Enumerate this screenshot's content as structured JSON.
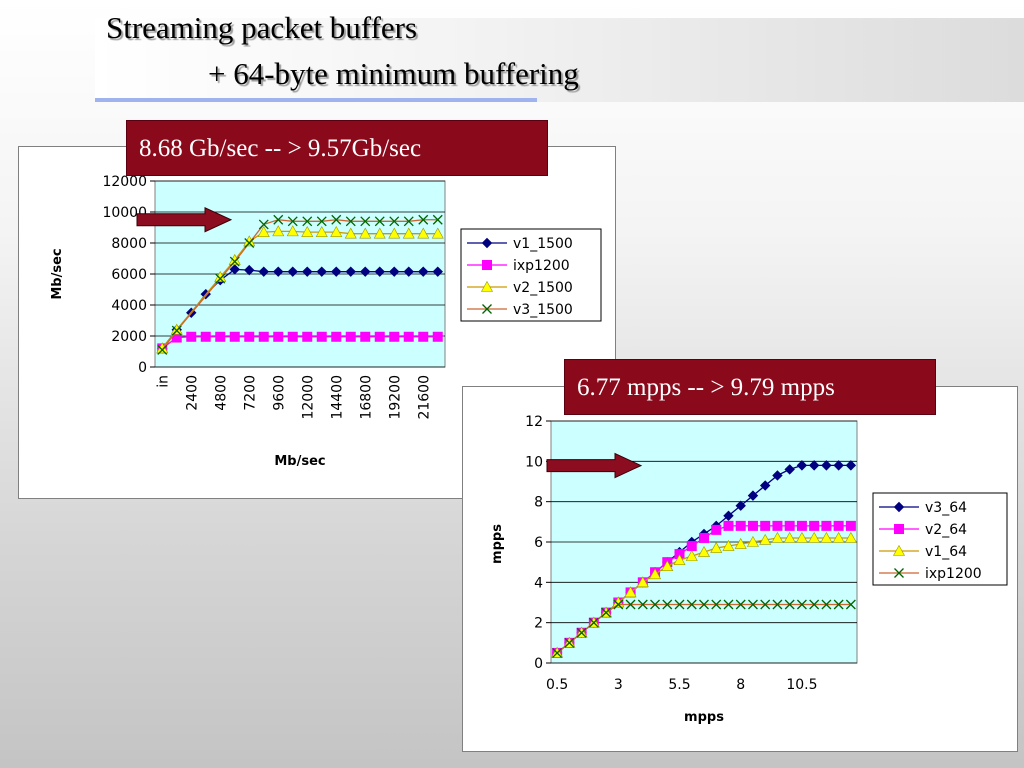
{
  "title": {
    "line1": "Streaming packet buffers",
    "line2": "+ 64-byte minimum buffering"
  },
  "callouts": {
    "chart1": "8.68 Gb/sec -- > 9.57Gb/sec",
    "chart2": "6.77 mpps -- > 9.79 mpps"
  },
  "colors": {
    "plot_bg": "#ccffff",
    "callout_bg": "#8a0a1c",
    "arrow": "#8b0d1f",
    "v1": "#000080",
    "ixp": "#ff00ff",
    "v2": "#ffff00",
    "v3": "#006400"
  },
  "chart_data": [
    {
      "type": "line",
      "title": "",
      "xlabel": "Mb/sec",
      "ylabel": "Mb/sec",
      "ylim": [
        0,
        12000
      ],
      "yticks": [
        "12000",
        "10000",
        "8000",
        "6000",
        "4000",
        "2000",
        "0"
      ],
      "grid": true,
      "legend_position": "right",
      "x_tick_labels": [
        "in",
        "2400",
        "4800",
        "7200",
        "9600",
        "12000",
        "14400",
        "16800",
        "19200",
        "21600"
      ],
      "x": [
        "in",
        1200,
        2400,
        3600,
        4800,
        6000,
        7200,
        8400,
        9600,
        10800,
        12000,
        13200,
        14400,
        15600,
        16800,
        18000,
        19200,
        20400,
        21600,
        22800
      ],
      "series": [
        {
          "name": "v1_1500",
          "color": "#000080",
          "marker": "diamond",
          "values": [
            1200,
            2400,
            3500,
            4700,
            5600,
            6300,
            6250,
            6150,
            6150,
            6150,
            6150,
            6150,
            6150,
            6150,
            6150,
            6150,
            6150,
            6150,
            6150,
            6150
          ]
        },
        {
          "name": "ixp1200",
          "color": "#ff00ff",
          "marker": "square",
          "values": [
            1200,
            1900,
            1950,
            1950,
            1950,
            1950,
            1950,
            1950,
            1950,
            1950,
            1950,
            1950,
            1950,
            1950,
            1950,
            1950,
            1950,
            1950,
            1950,
            1950
          ]
        },
        {
          "name": "v2_1500",
          "color": "#ffff00",
          "marker": "triangle",
          "values": [
            1200,
            2400,
            null,
            null,
            5800,
            6900,
            8100,
            8700,
            8750,
            8750,
            8700,
            8700,
            8700,
            8600,
            8600,
            8600,
            8600,
            8600,
            8600,
            8600
          ]
        },
        {
          "name": "v3_1500",
          "color": "#006400",
          "marker": "x",
          "values": [
            1100,
            2350,
            null,
            null,
            5700,
            6800,
            8000,
            9200,
            9500,
            9400,
            9400,
            9400,
            9500,
            9400,
            9400,
            9400,
            9400,
            9400,
            9500,
            9500
          ]
        }
      ]
    },
    {
      "type": "line",
      "title": "",
      "xlabel": "mpps",
      "ylabel": "mpps",
      "ylim": [
        0,
        12
      ],
      "yticks": [
        "12",
        "10",
        "8",
        "6",
        "4",
        "2",
        "0"
      ],
      "grid": true,
      "legend_position": "right",
      "x_tick_labels": [
        "0.5",
        "3",
        "5.5",
        "8",
        "10.5"
      ],
      "x": [
        0.5,
        1,
        1.5,
        2,
        2.5,
        3,
        3.5,
        4,
        4.5,
        5,
        5.5,
        6,
        6.5,
        7,
        7.5,
        8,
        8.5,
        9,
        9.5,
        10,
        10.5,
        11,
        11.5,
        12,
        12.5
      ],
      "series": [
        {
          "name": "v3_64",
          "color": "#000080",
          "marker": "diamond",
          "values": [
            0.5,
            1,
            1.5,
            2,
            2.5,
            3,
            3.5,
            4,
            4.5,
            5,
            5.5,
            6,
            6.4,
            6.8,
            7.3,
            7.8,
            8.3,
            8.8,
            9.3,
            9.6,
            9.8,
            9.8,
            9.8,
            9.8,
            9.8
          ]
        },
        {
          "name": "v2_64",
          "color": "#ff00ff",
          "marker": "square",
          "values": [
            0.5,
            1,
            1.5,
            2,
            2.5,
            3,
            3.5,
            4,
            4.5,
            5,
            5.4,
            5.8,
            6.2,
            6.6,
            6.8,
            6.8,
            6.8,
            6.8,
            6.8,
            6.8,
            6.8,
            6.8,
            6.8,
            6.8,
            6.8
          ]
        },
        {
          "name": "v1_64",
          "color": "#ffff00",
          "marker": "triangle",
          "values": [
            0.5,
            1,
            1.5,
            2,
            2.5,
            3,
            3.5,
            4,
            4.4,
            4.8,
            5.1,
            5.3,
            5.5,
            5.7,
            5.8,
            5.9,
            6.0,
            6.1,
            6.2,
            6.2,
            6.2,
            6.2,
            6.2,
            6.2,
            6.2
          ]
        },
        {
          "name": "ixp1200",
          "color": "#006400",
          "marker": "x",
          "values": [
            0.5,
            1,
            1.5,
            2,
            2.5,
            2.9,
            2.9,
            2.9,
            2.9,
            2.9,
            2.9,
            2.9,
            2.9,
            2.9,
            2.9,
            2.9,
            2.9,
            2.9,
            2.9,
            2.9,
            2.9,
            2.9,
            2.9,
            2.9,
            2.9
          ]
        }
      ]
    }
  ]
}
